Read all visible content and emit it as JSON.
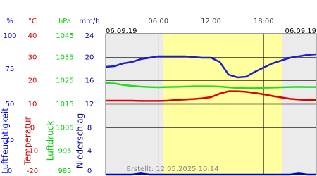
{
  "chart_data": {
    "type": "line",
    "date_start": "06.09.19",
    "date_end": "06.09.19",
    "created": "Erstellt: 12.05.2025 10:14",
    "xlim": [
      0,
      24
    ],
    "xticks": [
      {
        "value": 6,
        "label": "06:00"
      },
      {
        "value": 12,
        "label": "12:00"
      },
      {
        "value": 18,
        "label": "18:00"
      }
    ],
    "daylight": [
      6.6,
      20.1
    ],
    "axes": [
      {
        "unit": "%",
        "label": "Luftfeuchtigkeit",
        "color": "#0000ff",
        "lim": [
          0,
          100
        ],
        "ticks": [
          0,
          25,
          50,
          75,
          100
        ]
      },
      {
        "unit": "°C",
        "label": "Temperatur",
        "color": "#cc0000",
        "lim": [
          -20,
          40
        ],
        "ticks": [
          -20,
          -10,
          0,
          10,
          20,
          30,
          40
        ]
      },
      {
        "unit": "hPa",
        "label": "Luftdruck",
        "color": "#00cc00",
        "lim": [
          985,
          1045
        ],
        "ticks": [
          985,
          995,
          1005,
          1015,
          1025,
          1035,
          1045
        ]
      },
      {
        "unit": "mm/h",
        "label": "Niederschlag",
        "color": "#000099",
        "lim": [
          0,
          24
        ],
        "ticks": [
          0,
          4,
          8,
          12,
          16,
          20,
          24
        ]
      }
    ],
    "x": [
      0,
      1,
      2,
      3,
      4,
      5,
      6,
      7,
      8,
      9,
      10,
      11,
      12,
      13,
      14,
      15,
      16,
      17,
      18,
      19,
      20,
      21,
      22,
      23,
      24
    ],
    "series": [
      {
        "axis": 0,
        "color": "#1f1fc8",
        "values": [
          76.5,
          77,
          79,
          80,
          82,
          83,
          84,
          84,
          84,
          84,
          83.5,
          83,
          83,
          80,
          71,
          69,
          69.5,
          73,
          76,
          79,
          81,
          83,
          84,
          85,
          85.5
        ]
      },
      {
        "axis": 1,
        "color": "#e00000",
        "values": [
          11.5,
          11.5,
          11.5,
          11.5,
          11.4,
          11.4,
          11.4,
          11.5,
          11.8,
          12,
          12.2,
          12.5,
          13,
          14.5,
          15.5,
          15.5,
          15.3,
          14.8,
          14.2,
          13.5,
          12.9,
          12.3,
          12,
          11.8,
          11.8
        ]
      },
      {
        "axis": 2,
        "color": "#22dd22",
        "values": [
          1024,
          1023.8,
          1023.2,
          1022.8,
          1022.5,
          1022.3,
          1022.2,
          1022.3,
          1022.4,
          1022.5,
          1022.6,
          1022.6,
          1022.6,
          1022.5,
          1022.2,
          1021.9,
          1021.8,
          1021.8,
          1022,
          1022.1,
          1022.2,
          1022.3,
          1022.4,
          1022.3,
          1022.3
        ]
      },
      {
        "axis": 3,
        "color": "#0000cc",
        "values": [
          0,
          0,
          0,
          0,
          0.2,
          0,
          0,
          0,
          0,
          0,
          0,
          0,
          0,
          0,
          0,
          0,
          0,
          0,
          0,
          0,
          0,
          0,
          0.2,
          0,
          0
        ]
      }
    ]
  }
}
